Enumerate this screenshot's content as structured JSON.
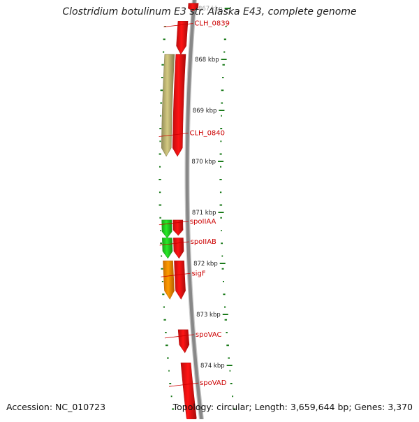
{
  "title": "Clostridium botulinum E3 str. Alaska E43, complete genome",
  "footer": {
    "accession": "Accession: NC_010723",
    "summary": "Topology: circular; Length: 3,659,644 bp; Genes: 3,370"
  },
  "ticks": [
    {
      "label": "867 kbp",
      "kbp": 867
    },
    {
      "label": "868 kbp",
      "kbp": 868
    },
    {
      "label": "869 kbp",
      "kbp": 869
    },
    {
      "label": "870 kbp",
      "kbp": 870
    },
    {
      "label": "871 kbp",
      "kbp": 871
    },
    {
      "label": "872 kbp",
      "kbp": 872
    },
    {
      "label": "873 kbp",
      "kbp": 873
    },
    {
      "label": "874 kbp",
      "kbp": 874
    }
  ],
  "features": [
    {
      "track": "top",
      "start": 866.9,
      "end": 867.05,
      "color": "#ee1111"
    },
    {
      "track": "inner",
      "start": 867.25,
      "end": 867.9,
      "color": "#ee1111"
    },
    {
      "track": "inner",
      "start": 867.9,
      "end": 869.9,
      "color": "#ee1111"
    },
    {
      "track": "outer",
      "start": 867.9,
      "end": 869.9,
      "color": "#b8b070"
    },
    {
      "track": "inner",
      "start": 871.15,
      "end": 871.45,
      "color": "#ee1111"
    },
    {
      "track": "outer",
      "start": 871.15,
      "end": 871.5,
      "color": "#22cc22"
    },
    {
      "track": "inner",
      "start": 871.5,
      "end": 871.9,
      "color": "#ee1111"
    },
    {
      "track": "outer",
      "start": 871.5,
      "end": 871.9,
      "color": "#22cc22"
    },
    {
      "track": "inner",
      "start": 871.95,
      "end": 872.7,
      "color": "#ee1111"
    },
    {
      "track": "outer",
      "start": 871.95,
      "end": 872.7,
      "color": "#ff8800"
    },
    {
      "track": "inner",
      "start": 873.3,
      "end": 873.75,
      "color": "#ee1111"
    },
    {
      "track": "inner",
      "start": 873.95,
      "end": 875.2,
      "color": "#ee1111"
    }
  ],
  "labels": [
    {
      "text": "CLH_0839",
      "kbp": 867.35
    },
    {
      "text": "CLH_0840",
      "kbp": 869.5
    },
    {
      "text": "spoIIAA",
      "kbp": 871.23
    },
    {
      "text": "spoIIAB",
      "kbp": 871.63
    },
    {
      "text": "sigF",
      "kbp": 872.25
    },
    {
      "text": "spoVAC",
      "kbp": 873.45
    },
    {
      "text": "spoVAD",
      "kbp": 874.4
    }
  ],
  "colors": {
    "backbone": "#888888",
    "gc_track": "#1a7a1a",
    "label_text": "#cc0000",
    "tick_text": "#222222"
  }
}
